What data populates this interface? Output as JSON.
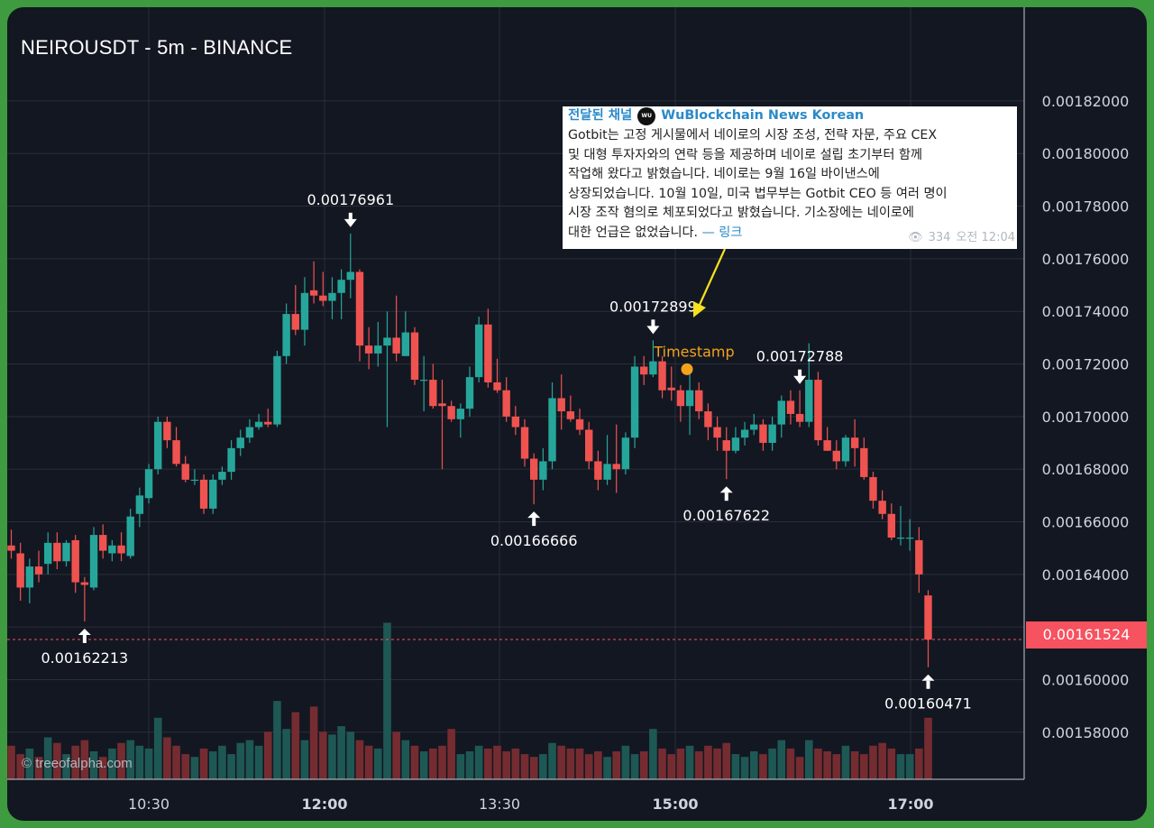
{
  "title": "NEIROUSDT - 5m - BINANCE",
  "watermark": "© treeofalpha.com",
  "current_price": "0.00161524",
  "colors": {
    "up": "#26a69a",
    "down": "#ef5350",
    "background": "#131722",
    "current_price": "#f7525f",
    "annotation": "#f2a31b"
  },
  "news": {
    "channel": "전달된 채널",
    "source": "WuBlockchain News Korean",
    "avatar_text": "WU",
    "body": "Gotbit는 고정 게시물에서 네이로의 시장 조성, 전략 자문, 주요 CEX\n및 대형 투자자와의 연락 등을 제공하며 네이로 설립 초기부터 함께\n작업해 왔다고 밝혔습니다. 네이로는 9월 16일 바이낸스에\n상장되었습니다. 10월 10일, 미국 법무부는 Gotbit CEO 등 여러 명이\n시장 조작 혐의로 체포되었다고 밝혔습니다. 기소장에는 네이로에\n대한 언급은 없었습니다.",
    "link": "— 링크",
    "views": "334",
    "time": "오전 12:04"
  },
  "timestamp_label": "Timestamp",
  "chart_data": {
    "type": "candlestick",
    "title": "NEIROUSDT - 5m - BINANCE",
    "x_tick_labels": [
      "10:30",
      "12:00",
      "13:30",
      "15:00",
      "17:00"
    ],
    "y_tick_labels": [
      "0.00158000",
      "0.00160000",
      "0.00162000",
      "0.00164000",
      "0.00166000",
      "0.00168000",
      "0.00170000",
      "0.00172000",
      "0.00174000",
      "0.00176000",
      "0.00178000",
      "0.00180000",
      "0.00182000"
    ],
    "ylim": [
      0.001556,
      0.001839
    ],
    "grid": true,
    "extreme_labels": [
      {
        "candle": 8,
        "value": "0.00162213",
        "dir": "low"
      },
      {
        "candle": 37,
        "value": "0.00176961",
        "dir": "high"
      },
      {
        "candle": 57,
        "value": "0.00166666",
        "dir": "low"
      },
      {
        "candle": 70,
        "value": "0.00172899",
        "dir": "high"
      },
      {
        "candle": 78,
        "value": "0.00167622",
        "dir": "low"
      },
      {
        "candle": 86,
        "value": "0.00172788",
        "dir": "high"
      },
      {
        "candle": 100,
        "value": "0.00160471",
        "dir": "low"
      }
    ],
    "timestamp_candle": 73.7,
    "timestamp_value": 0.001718,
    "candles": [
      [
        0.001651,
        0.001657,
        0.001646,
        0.001649,
        12
      ],
      [
        0.001648,
        0.001652,
        0.00163,
        0.001635,
        9
      ],
      [
        0.001635,
        0.001646,
        0.001629,
        0.001643,
        11
      ],
      [
        0.001643,
        0.001649,
        0.001637,
        0.00164,
        8
      ],
      [
        0.001644,
        0.001656,
        0.00164,
        0.001652,
        15
      ],
      [
        0.001652,
        0.001656,
        0.001642,
        0.001645,
        13
      ],
      [
        0.001645,
        0.001653,
        0.001643,
        0.001652,
        9
      ],
      [
        0.001653,
        0.001655,
        0.001633,
        0.001637,
        12
      ],
      [
        0.001637,
        0.001639,
        0.00162213,
        0.001636,
        14
      ],
      [
        0.001635,
        0.001658,
        0.001634,
        0.001655,
        10
      ],
      [
        0.001655,
        0.001659,
        0.001646,
        0.001649,
        8
      ],
      [
        0.001648,
        0.001653,
        0.001645,
        0.001651,
        11
      ],
      [
        0.001651,
        0.001656,
        0.001645,
        0.001648,
        13
      ],
      [
        0.001647,
        0.001665,
        0.001646,
        0.001662,
        14
      ],
      [
        0.001663,
        0.001673,
        0.001658,
        0.00167,
        12
      ],
      [
        0.001669,
        0.001682,
        0.001667,
        0.00168,
        11
      ],
      [
        0.00168,
        0.0017,
        0.001678,
        0.001698,
        22
      ],
      [
        0.001698,
        0.0017,
        0.001688,
        0.001691,
        15
      ],
      [
        0.001691,
        0.001696,
        0.001681,
        0.001682,
        12
      ],
      [
        0.001682,
        0.001685,
        0.001675,
        0.001676,
        9
      ],
      [
        0.001676,
        0.00168,
        0.001674,
        0.001676,
        8
      ],
      [
        0.001676,
        0.001678,
        0.001663,
        0.001665,
        11
      ],
      [
        0.001665,
        0.001678,
        0.001663,
        0.001676,
        10
      ],
      [
        0.001676,
        0.001681,
        0.001674,
        0.001679,
        12
      ],
      [
        0.001679,
        0.001691,
        0.001676,
        0.001688,
        9
      ],
      [
        0.001688,
        0.001695,
        0.001685,
        0.001692,
        13
      ],
      [
        0.001692,
        0.001699,
        0.00169,
        0.001696,
        14
      ],
      [
        0.001696,
        0.001701,
        0.001695,
        0.001698,
        12
      ],
      [
        0.001698,
        0.001703,
        0.001696,
        0.001697,
        17
      ],
      [
        0.001697,
        0.001725,
        0.001696,
        0.001723,
        28
      ],
      [
        0.001723,
        0.001743,
        0.00172,
        0.001739,
        18
      ],
      [
        0.001739,
        0.00175,
        0.001731,
        0.001733,
        24
      ],
      [
        0.001733,
        0.001753,
        0.001727,
        0.001747,
        14
      ],
      [
        0.001748,
        0.001759,
        0.001743,
        0.001746,
        26
      ],
      [
        0.001746,
        0.001755,
        0.001742,
        0.001744,
        17
      ],
      [
        0.001744,
        0.001753,
        0.001737,
        0.001747,
        16
      ],
      [
        0.001747,
        0.001756,
        0.001737,
        0.001752,
        19
      ],
      [
        0.001752,
        0.00176961,
        0.001745,
        0.001755,
        17
      ],
      [
        0.001755,
        0.001756,
        0.001721,
        0.001727,
        14
      ],
      [
        0.001727,
        0.001734,
        0.001718,
        0.001724,
        12
      ],
      [
        0.001724,
        0.001736,
        0.001719,
        0.001727,
        11
      ],
      [
        0.001727,
        0.00174,
        0.001696,
        0.00173,
        56
      ],
      [
        0.00173,
        0.001746,
        0.001721,
        0.001724,
        17
      ],
      [
        0.001723,
        0.00174,
        0.001723,
        0.001732,
        14
      ],
      [
        0.001732,
        0.001734,
        0.001712,
        0.001714,
        12
      ],
      [
        0.001714,
        0.001723,
        0.001702,
        0.001714,
        10
      ],
      [
        0.001714,
        0.00172,
        0.001703,
        0.001704,
        11
      ],
      [
        0.001705,
        0.001714,
        0.00168,
        0.001704,
        12
      ],
      [
        0.001704,
        0.001706,
        0.001698,
        0.001699,
        18
      ],
      [
        0.001699,
        0.001705,
        0.001692,
        0.001703,
        9
      ],
      [
        0.001703,
        0.001719,
        0.0017,
        0.001715,
        10
      ],
      [
        0.001715,
        0.001738,
        0.001713,
        0.001735,
        12
      ],
      [
        0.001735,
        0.001741,
        0.001711,
        0.001713,
        11
      ],
      [
        0.001713,
        0.001722,
        0.001709,
        0.00171,
        12
      ],
      [
        0.00171,
        0.001715,
        0.001698,
        0.0017,
        10
      ],
      [
        0.0017,
        0.001704,
        0.001693,
        0.001696,
        11
      ],
      [
        0.001696,
        0.001699,
        0.001681,
        0.001684,
        9
      ],
      [
        0.001684,
        0.001686,
        0.00166666,
        0.001676,
        8
      ],
      [
        0.001676,
        0.001688,
        0.001672,
        0.001683,
        9
      ],
      [
        0.001683,
        0.001713,
        0.00168,
        0.001707,
        13
      ],
      [
        0.001707,
        0.001716,
        0.001695,
        0.001702,
        12
      ],
      [
        0.001702,
        0.001708,
        0.001698,
        0.001699,
        11
      ],
      [
        0.001699,
        0.001703,
        0.001693,
        0.001695,
        11
      ],
      [
        0.001695,
        0.001698,
        0.00168,
        0.001683,
        9
      ],
      [
        0.001683,
        0.001687,
        0.001672,
        0.001676,
        10
      ],
      [
        0.001676,
        0.001693,
        0.001674,
        0.001682,
        8
      ],
      [
        0.001682,
        0.001697,
        0.001671,
        0.00168,
        10
      ],
      [
        0.00168,
        0.001694,
        0.001678,
        0.001692,
        12
      ],
      [
        0.001692,
        0.001723,
        0.001688,
        0.001719,
        9
      ],
      [
        0.001719,
        0.001723,
        0.001712,
        0.001716,
        10
      ],
      [
        0.001716,
        0.00172899,
        0.001715,
        0.001721,
        18
      ],
      [
        0.001721,
        0.001723,
        0.001707,
        0.00171,
        11
      ],
      [
        0.001711,
        0.001719,
        0.001706,
        0.00171,
        9
      ],
      [
        0.00171,
        0.001712,
        0.001698,
        0.001704,
        11
      ],
      [
        0.001704,
        0.001717,
        0.001693,
        0.00171,
        12
      ],
      [
        0.00171,
        0.001713,
        0.001699,
        0.001702,
        10
      ],
      [
        0.001702,
        0.001705,
        0.001691,
        0.001696,
        12
      ],
      [
        0.001696,
        0.0017,
        0.001687,
        0.001692,
        11
      ],
      [
        0.001691,
        0.001696,
        0.00167622,
        0.001687,
        13
      ],
      [
        0.001687,
        0.001696,
        0.001686,
        0.001692,
        9
      ],
      [
        0.001692,
        0.001698,
        0.001689,
        0.001695,
        8
      ],
      [
        0.001695,
        0.001701,
        0.001693,
        0.001697,
        10
      ],
      [
        0.001697,
        0.001699,
        0.001687,
        0.00169,
        9
      ],
      [
        0.00169,
        0.0017,
        0.001687,
        0.001697,
        11
      ],
      [
        0.001697,
        0.001708,
        0.001692,
        0.001706,
        14
      ],
      [
        0.001706,
        0.00171,
        0.001697,
        0.001701,
        11
      ],
      [
        0.001701,
        0.00171,
        0.001696,
        0.001698,
        8
      ],
      [
        0.001698,
        0.00172788,
        0.001696,
        0.001714,
        14
      ],
      [
        0.001714,
        0.001717,
        0.001689,
        0.001691,
        11
      ],
      [
        0.001691,
        0.001696,
        0.001687,
        0.001687,
        10
      ],
      [
        0.001687,
        0.001691,
        0.00168,
        0.001683,
        9
      ],
      [
        0.001683,
        0.001693,
        0.001681,
        0.001692,
        12
      ],
      [
        0.001692,
        0.001699,
        0.001681,
        0.001688,
        10
      ],
      [
        0.001688,
        0.001692,
        0.001676,
        0.001677,
        9
      ],
      [
        0.001677,
        0.001679,
        0.001665,
        0.001668,
        12
      ],
      [
        0.001668,
        0.001672,
        0.001661,
        0.001663,
        13
      ],
      [
        0.001663,
        0.001667,
        0.001653,
        0.001654,
        11
      ],
      [
        0.001654,
        0.001666,
        0.001651,
        0.001654,
        9
      ],
      [
        0.001654,
        0.001661,
        0.001649,
        0.001654,
        9
      ],
      [
        0.001653,
        0.001658,
        0.001633,
        0.00164,
        11
      ],
      [
        0.001632,
        0.001634,
        0.00160471,
        0.00161524,
        22
      ]
    ]
  }
}
